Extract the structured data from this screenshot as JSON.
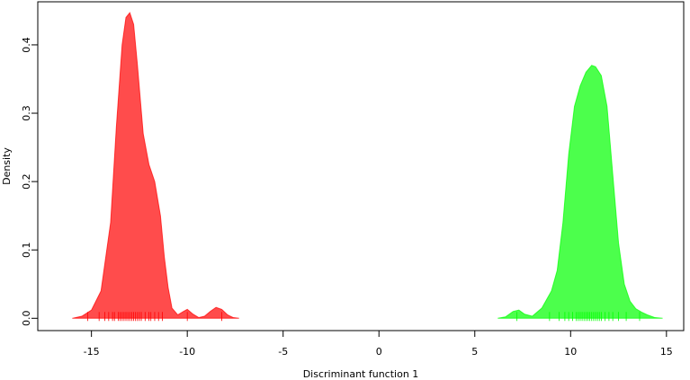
{
  "chart_data": {
    "type": "density",
    "xlabel": "Discriminant function 1",
    "ylabel": "Density",
    "xlim": [
      -17.8,
      15.9
    ],
    "ylim": [
      -0.018,
      0.463
    ],
    "xticks": [
      -15,
      -10,
      -5,
      0,
      5,
      10,
      15
    ],
    "yticks": [
      {
        "value": 0,
        "label": "0.0"
      },
      0.1,
      0.2,
      0.3,
      0.4
    ],
    "series": [
      {
        "color": "#ff0000",
        "fill": "rgba(255,0,0,0.7)",
        "x": [
          -16,
          -15.5,
          -15,
          -14.5,
          -14,
          -13.7,
          -13.4,
          -13.2,
          -13,
          -12.8,
          -12.6,
          -12.3,
          -12,
          -11.7,
          -11.4,
          -11.2,
          -11,
          -10.8,
          -10.5,
          -10.2,
          -10,
          -9.7,
          -9.4,
          -9.1,
          -8.8,
          -8.5,
          -8.2,
          -7.9,
          -7.6,
          -7.3
        ],
        "values": [
          0,
          0.003,
          0.012,
          0.04,
          0.14,
          0.28,
          0.4,
          0.44,
          0.447,
          0.43,
          0.37,
          0.27,
          0.225,
          0.2,
          0.15,
          0.09,
          0.045,
          0.015,
          0.005,
          0.01,
          0.013,
          0.006,
          0.001,
          0.003,
          0.01,
          0.016,
          0.013,
          0.005,
          0.001,
          0
        ],
        "rug": [
          -15.2,
          -14.6,
          -14.3,
          -14.1,
          -13.9,
          -13.8,
          -13.6,
          -13.5,
          -13.4,
          -13.3,
          -13.2,
          -13.1,
          -13.0,
          -12.9,
          -12.8,
          -12.7,
          -12.6,
          -12.5,
          -12.4,
          -12.2,
          -12.0,
          -11.9,
          -11.7,
          -11.5,
          -11.3,
          -10.0,
          -8.2
        ]
      },
      {
        "color": "#00ff00",
        "fill": "rgba(0,255,0,0.7)",
        "x": [
          6.2,
          6.6,
          7,
          7.3,
          7.6,
          8,
          8.5,
          9,
          9.3,
          9.6,
          9.9,
          10.2,
          10.5,
          10.8,
          11.1,
          11.3,
          11.6,
          11.9,
          12.2,
          12.5,
          12.8,
          13.1,
          13.4,
          13.7,
          14,
          14.4,
          14.8
        ],
        "values": [
          0,
          0.002,
          0.01,
          0.012,
          0.006,
          0.003,
          0.015,
          0.04,
          0.07,
          0.14,
          0.24,
          0.31,
          0.34,
          0.36,
          0.37,
          0.368,
          0.355,
          0.31,
          0.21,
          0.11,
          0.05,
          0.025,
          0.014,
          0.009,
          0.005,
          0.001,
          0
        ],
        "rug": [
          7.2,
          8.9,
          9.4,
          9.7,
          9.9,
          10.1,
          10.3,
          10.4,
          10.5,
          10.6,
          10.7,
          10.8,
          10.9,
          11.0,
          11.1,
          11.2,
          11.3,
          11.4,
          11.5,
          11.6,
          11.8,
          12.0,
          12.2,
          12.5,
          12.9,
          13.6
        ]
      }
    ]
  }
}
